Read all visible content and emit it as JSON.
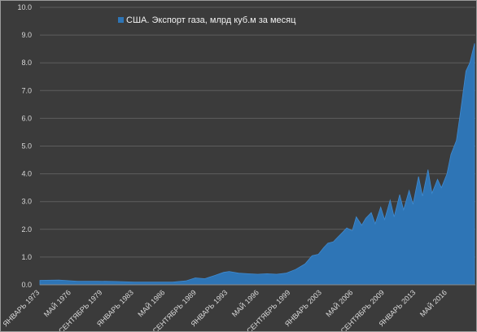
{
  "chart_data": {
    "type": "area",
    "title": "",
    "xlabel": "",
    "ylabel": "",
    "ylim": [
      0,
      10
    ],
    "yticks": [
      "0.0",
      "1.0",
      "2.0",
      "3.0",
      "4.0",
      "5.0",
      "6.0",
      "7.0",
      "8.0",
      "9.0",
      "10.0"
    ],
    "xtick_labels": [
      "ЯНВАРЬ 1973",
      "МАЙ 1976",
      "СЕНТЯБРЬ 1979",
      "ЯНВАРЬ 1983",
      "МАЙ 1986",
      "СЕНТЯБРЬ 1989",
      "ЯНВАРЬ 1993",
      "МАЙ 1996",
      "СЕНТЯБРЬ 1999",
      "ЯНВАРЬ 2003",
      "МАЙ 2006",
      "СЕНТЯБРЬ 2009",
      "ЯНВАРЬ 2013",
      "МАЙ 2016"
    ],
    "grid": true,
    "legend_position": "top-left",
    "series_color": "#2e75b6",
    "series": [
      {
        "name": "США. Экспорт газа, млрд куб.м за месяц",
        "x": [
          "1973-01",
          "1975-01",
          "1977-01",
          "1979-01",
          "1981-01",
          "1983-01",
          "1985-01",
          "1987-01",
          "1988-06",
          "1989-06",
          "1990-06",
          "1991-06",
          "1992-06",
          "1993-01",
          "1994-01",
          "1995-01",
          "1996-01",
          "1997-01",
          "1998-01",
          "1999-01",
          "2000-01",
          "2001-01",
          "2001-10",
          "2002-06",
          "2003-01",
          "2003-06",
          "2004-01",
          "2004-06",
          "2005-01",
          "2005-06",
          "2006-01",
          "2006-06",
          "2007-01",
          "2007-06",
          "2008-01",
          "2008-06",
          "2009-01",
          "2009-06",
          "2010-01",
          "2010-06",
          "2011-01",
          "2011-06",
          "2012-01",
          "2012-06",
          "2013-01",
          "2013-06",
          "2014-01",
          "2014-06",
          "2015-01",
          "2015-06",
          "2016-01",
          "2016-06",
          "2017-01",
          "2017-06",
          "2018-01",
          "2018-06",
          "2018-12"
        ],
        "values": [
          0.16,
          0.17,
          0.13,
          0.13,
          0.12,
          0.1,
          0.1,
          0.1,
          0.14,
          0.25,
          0.22,
          0.33,
          0.45,
          0.48,
          0.42,
          0.4,
          0.38,
          0.4,
          0.38,
          0.42,
          0.55,
          0.75,
          1.05,
          1.1,
          1.35,
          1.5,
          1.55,
          1.7,
          1.9,
          2.05,
          1.95,
          2.45,
          2.15,
          2.4,
          2.6,
          2.2,
          2.8,
          2.35,
          3.05,
          2.45,
          3.25,
          2.7,
          3.4,
          2.9,
          3.9,
          3.2,
          4.15,
          3.3,
          3.8,
          3.5,
          4.0,
          4.7,
          5.2,
          6.2,
          7.7,
          8.0,
          8.7
        ]
      }
    ]
  }
}
